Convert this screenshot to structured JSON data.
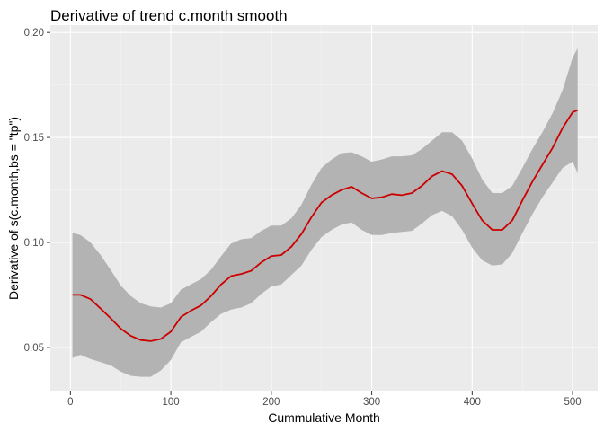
{
  "chart_data": {
    "type": "line",
    "title": "Derivative of trend c.month smooth",
    "xlabel": "Cummulative Month",
    "ylabel": "Derivative of s(c.month,bs = \"tp\")",
    "xlim": [
      -20,
      525
    ],
    "ylim": [
      0.029,
      0.2035
    ],
    "x_ticks": [
      0,
      100,
      200,
      300,
      400,
      500
    ],
    "y_ticks": [
      0.05,
      0.1,
      0.15,
      0.2
    ],
    "x_tick_labels": [
      "0",
      "100",
      "200",
      "300",
      "400",
      "500"
    ],
    "y_tick_labels": [
      "0.05",
      "0.10",
      "0.15",
      "0.20"
    ],
    "grid": true,
    "colors": {
      "panel": "#ebebeb",
      "grid": "#ffffff",
      "band": "#b3b3b3",
      "line": "#cc0000"
    },
    "series": [
      {
        "x": [
          2,
          10,
          20,
          30,
          40,
          50,
          60,
          70,
          80,
          90,
          100,
          110,
          120,
          130,
          140,
          150,
          160,
          170,
          180,
          190,
          200,
          210,
          220,
          230,
          240,
          250,
          260,
          270,
          280,
          290,
          300,
          310,
          320,
          330,
          340,
          350,
          360,
          370,
          380,
          390,
          400,
          410,
          420,
          430,
          440,
          450,
          460,
          470,
          480,
          490,
          500,
          505
        ],
        "y": [
          0.075,
          0.075,
          0.073,
          0.0685,
          0.064,
          0.059,
          0.0555,
          0.0535,
          0.053,
          0.054,
          0.0575,
          0.0645,
          0.0675,
          0.07,
          0.0745,
          0.08,
          0.084,
          0.085,
          0.0865,
          0.0905,
          0.0935,
          0.094,
          0.098,
          0.104,
          0.112,
          0.119,
          0.1225,
          0.125,
          0.1265,
          0.1235,
          0.121,
          0.1215,
          0.123,
          0.1225,
          0.1235,
          0.127,
          0.1315,
          0.134,
          0.1325,
          0.127,
          0.1185,
          0.1105,
          0.106,
          0.106,
          0.1105,
          0.12,
          0.129,
          0.137,
          0.145,
          0.1545,
          0.162,
          0.163
        ],
        "lower": [
          0.045,
          0.0465,
          0.0445,
          0.043,
          0.0415,
          0.0385,
          0.0365,
          0.036,
          0.036,
          0.039,
          0.044,
          0.0525,
          0.055,
          0.0575,
          0.062,
          0.066,
          0.068,
          0.069,
          0.071,
          0.0755,
          0.079,
          0.08,
          0.0845,
          0.089,
          0.0965,
          0.1025,
          0.106,
          0.1085,
          0.1095,
          0.106,
          0.1035,
          0.1035,
          0.1045,
          0.105,
          0.1055,
          0.109,
          0.113,
          0.115,
          0.1125,
          0.106,
          0.0975,
          0.0915,
          0.089,
          0.0895,
          0.095,
          0.1045,
          0.1135,
          0.1215,
          0.1285,
          0.1355,
          0.1385,
          0.133
        ],
        "upper": [
          0.1045,
          0.1035,
          0.1,
          0.094,
          0.087,
          0.0795,
          0.0745,
          0.071,
          0.0695,
          0.069,
          0.071,
          0.0775,
          0.08,
          0.0825,
          0.087,
          0.0935,
          0.0995,
          0.1015,
          0.102,
          0.1055,
          0.108,
          0.108,
          0.1115,
          0.118,
          0.1275,
          0.1355,
          0.1395,
          0.1425,
          0.143,
          0.141,
          0.1385,
          0.1395,
          0.141,
          0.141,
          0.1415,
          0.1445,
          0.1485,
          0.1525,
          0.1525,
          0.1485,
          0.14,
          0.13,
          0.1235,
          0.1235,
          0.127,
          0.1355,
          0.1445,
          0.1525,
          0.1615,
          0.1725,
          0.188,
          0.1925
        ]
      }
    ]
  }
}
